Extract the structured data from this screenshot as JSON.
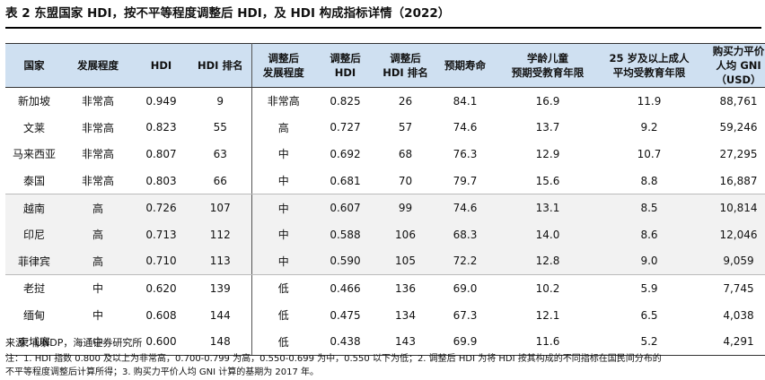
{
  "title": "表 2 东盟国家 HDI，按不平等程度调整后 HDI，及 HDI 构成指标详情（2022）",
  "headers": [
    {
      "l1": "国家",
      "l2": ""
    },
    {
      "l1": "发展程度",
      "l2": ""
    },
    {
      "l1": "HDI",
      "l2": ""
    },
    {
      "l1": "HDI 排名",
      "l2": ""
    },
    {
      "l1": "调整后",
      "l2": "发展程度"
    },
    {
      "l1": "调整后",
      "l2": "HDI"
    },
    {
      "l1": "调整后",
      "l2": "HDI 排名"
    },
    {
      "l1": "预期寿命",
      "l2": ""
    },
    {
      "l1": "学龄儿童",
      "l2": "预期受教育年限"
    },
    {
      "l1": "25 岁及以上成人",
      "l2": "平均受教育年限"
    },
    {
      "l1": "购买力平价",
      "l2": "人均 GNI（USD）"
    }
  ],
  "rows": [
    [
      "新加坡",
      "非常高",
      "0.949",
      "9",
      "非常高",
      "0.825",
      "26",
      "84.1",
      "16.9",
      "11.9",
      "88,761"
    ],
    [
      "文莱",
      "非常高",
      "0.823",
      "55",
      "高",
      "0.727",
      "57",
      "74.6",
      "13.7",
      "9.2",
      "59,246"
    ],
    [
      "马来西亚",
      "非常高",
      "0.807",
      "63",
      "中",
      "0.692",
      "68",
      "76.3",
      "12.9",
      "10.7",
      "27,295"
    ],
    [
      "泰国",
      "非常高",
      "0.803",
      "66",
      "中",
      "0.681",
      "70",
      "79.7",
      "15.6",
      "8.8",
      "16,887"
    ],
    [
      "越南",
      "高",
      "0.726",
      "107",
      "中",
      "0.607",
      "99",
      "74.6",
      "13.1",
      "8.5",
      "10,814"
    ],
    [
      "印尼",
      "高",
      "0.713",
      "112",
      "中",
      "0.588",
      "106",
      "68.3",
      "14.0",
      "8.6",
      "12,046"
    ],
    [
      "菲律宾",
      "高",
      "0.710",
      "113",
      "中",
      "0.590",
      "105",
      "72.2",
      "12.8",
      "9.0",
      "9,059"
    ],
    [
      "老挝",
      "中",
      "0.620",
      "139",
      "低",
      "0.466",
      "136",
      "69.0",
      "10.2",
      "5.9",
      "7,745"
    ],
    [
      "缅甸",
      "中",
      "0.608",
      "144",
      "低",
      "0.475",
      "134",
      "67.3",
      "12.1",
      "6.5",
      "4,038"
    ],
    [
      "柬埔寨",
      "中",
      "0.600",
      "148",
      "低",
      "0.438",
      "143",
      "69.9",
      "11.6",
      "5.2",
      "4,291"
    ]
  ],
  "source": "来源：UNDP，海通证券研究所",
  "notes": [
    "注：1. HDI 指数 0.800 及以上为非常高，0.700-0.799 为高，0.550-0.699 为中，0.550 以下为低；2. 调整后 HDI 为将 HDI 按其构成的不同指标在国民间分布的",
    "不平等程度调整后计算所得；3. 购买力平价人均 GNI 计算的基期为 2017 年。"
  ]
}
